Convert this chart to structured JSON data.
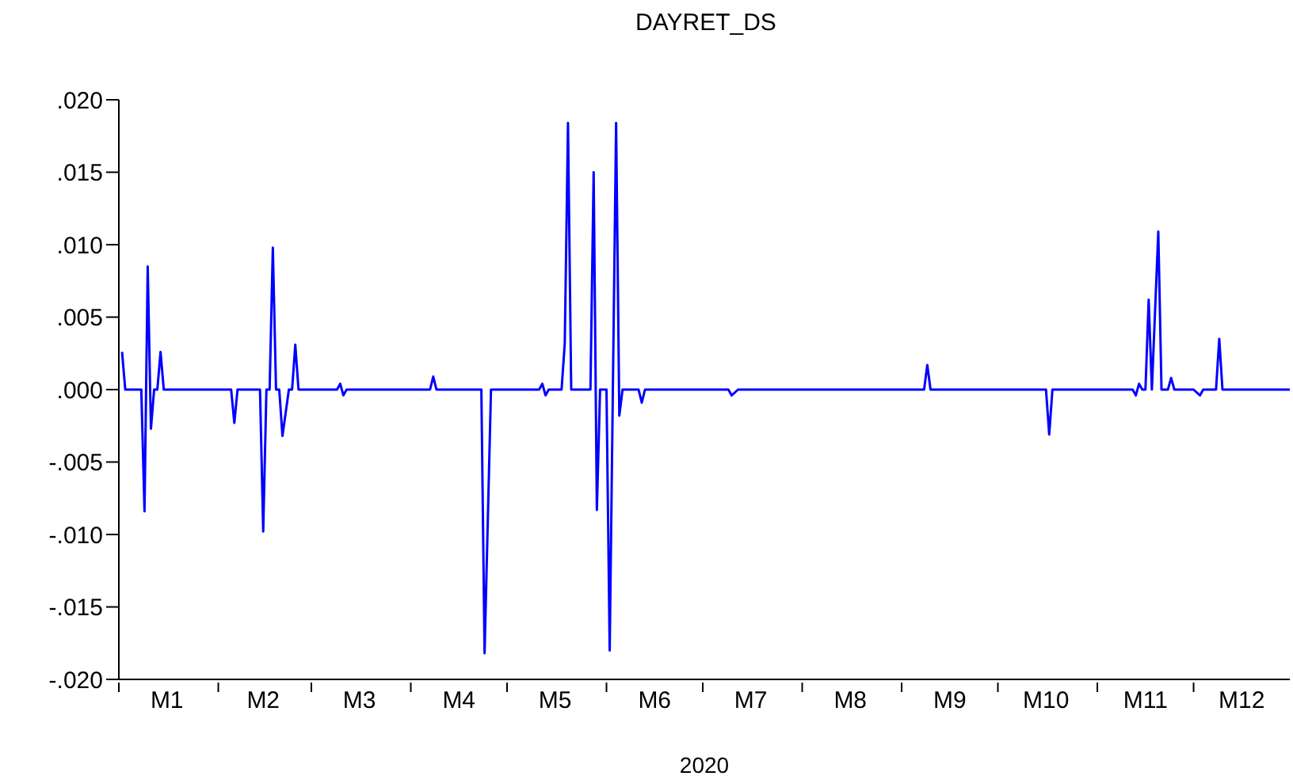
{
  "chart_data": {
    "type": "line",
    "title": "DAYRET_DS",
    "xlabel": "2020",
    "color": "#0000ff",
    "x": [
      "2020-01-02",
      "2020-01-03",
      "2020-01-08",
      "2020-01-09",
      "2020-01-10",
      "2020-01-11",
      "2020-01-12",
      "2020-01-13",
      "2020-01-14",
      "2020-01-15",
      "2020-02-05",
      "2020-02-06",
      "2020-02-07",
      "2020-02-14",
      "2020-02-15",
      "2020-02-16",
      "2020-02-17",
      "2020-02-18",
      "2020-02-19",
      "2020-02-20",
      "2020-02-21",
      "2020-02-23",
      "2020-02-24",
      "2020-02-25",
      "2020-02-26",
      "2020-03-09",
      "2020-03-10",
      "2020-03-11",
      "2020-03-12",
      "2020-04-07",
      "2020-04-08",
      "2020-04-09",
      "2020-04-23",
      "2020-04-24",
      "2020-04-26",
      "2020-05-11",
      "2020-05-12",
      "2020-05-13",
      "2020-05-14",
      "2020-05-18",
      "2020-05-19",
      "2020-05-20",
      "2020-05-21",
      "2020-05-27",
      "2020-05-28",
      "2020-05-29",
      "2020-05-30",
      "2020-06-01",
      "2020-06-02",
      "2020-06-04",
      "2020-06-05",
      "2020-06-06",
      "2020-06-11",
      "2020-06-12",
      "2020-06-13",
      "2020-07-09",
      "2020-07-10",
      "2020-07-12",
      "2020-09-08",
      "2020-09-09",
      "2020-09-10",
      "2020-10-16",
      "2020-10-17",
      "2020-10-18",
      "2020-11-12",
      "2020-11-13",
      "2020-11-14",
      "2020-11-15",
      "2020-11-16",
      "2020-11-17",
      "2020-11-18",
      "2020-11-20",
      "2020-11-21",
      "2020-11-23",
      "2020-11-24",
      "2020-11-25",
      "2020-12-01",
      "2020-12-03",
      "2020-12-04",
      "2020-12-08",
      "2020-12-09",
      "2020-12-10",
      "2020-12-31"
    ],
    "values": [
      0.0026,
      0,
      0,
      -0.0084,
      0.0085,
      -0.0027,
      0,
      0,
      0.0026,
      0,
      0,
      -0.0023,
      0,
      0,
      -0.0098,
      0,
      0,
      0.0098,
      0,
      0,
      -0.0032,
      0,
      0,
      0.0031,
      0,
      0,
      0.0004,
      -0.0004,
      0,
      0,
      0.0009,
      0,
      0,
      -0.0182,
      0,
      0,
      0.0004,
      -0.0004,
      0,
      0,
      0.0032,
      0.0184,
      0,
      0,
      0.015,
      -0.0083,
      0,
      0,
      -0.018,
      0.0184,
      -0.0018,
      0,
      0,
      -0.0009,
      0,
      0,
      -0.0004,
      0,
      0,
      0.0017,
      0,
      0,
      -0.0031,
      0,
      0,
      -0.0004,
      0.0004,
      0,
      0,
      0.0062,
      0,
      0.0109,
      0,
      0,
      0.0008,
      0,
      0,
      -0.0004,
      0,
      0,
      0.0035,
      0,
      0
    ],
    "xlim": [
      "2020-01-01",
      "2020-12-31"
    ],
    "xticks": [
      {
        "value": "2020-01-01",
        "label": null
      },
      {
        "value": "2020-01-16",
        "label": "M1"
      },
      {
        "value": "2020-02-01",
        "label": null
      },
      {
        "value": "2020-02-15",
        "label": "M2"
      },
      {
        "value": "2020-03-01",
        "label": null
      },
      {
        "value": "2020-03-16",
        "label": "M3"
      },
      {
        "value": "2020-04-01",
        "label": null
      },
      {
        "value": "2020-04-16",
        "label": "M4"
      },
      {
        "value": "2020-05-01",
        "label": null
      },
      {
        "value": "2020-05-16",
        "label": "M5"
      },
      {
        "value": "2020-06-01",
        "label": null
      },
      {
        "value": "2020-06-16",
        "label": "M6"
      },
      {
        "value": "2020-07-01",
        "label": null
      },
      {
        "value": "2020-07-16",
        "label": "M7"
      },
      {
        "value": "2020-08-01",
        "label": null
      },
      {
        "value": "2020-08-16",
        "label": "M8"
      },
      {
        "value": "2020-09-01",
        "label": null
      },
      {
        "value": "2020-09-16",
        "label": "M9"
      },
      {
        "value": "2020-10-01",
        "label": null
      },
      {
        "value": "2020-10-16",
        "label": "M10"
      },
      {
        "value": "2020-11-01",
        "label": null
      },
      {
        "value": "2020-11-16",
        "label": "M11"
      },
      {
        "value": "2020-12-01",
        "label": null
      },
      {
        "value": "2020-12-16",
        "label": "M12"
      }
    ],
    "ylim": [
      -0.02,
      0.02
    ],
    "yticks": [
      {
        "value": 0.02,
        "label": ".020"
      },
      {
        "value": 0.015,
        "label": ".015"
      },
      {
        "value": 0.01,
        "label": ".010"
      },
      {
        "value": 0.005,
        "label": ".005"
      },
      {
        "value": 0,
        "label": ".000"
      },
      {
        "value": -0.005,
        "label": "-.005"
      },
      {
        "value": -0.01,
        "label": "-.010"
      },
      {
        "value": -0.015,
        "label": "-.015"
      },
      {
        "value": -0.02,
        "label": "-.020"
      }
    ]
  }
}
